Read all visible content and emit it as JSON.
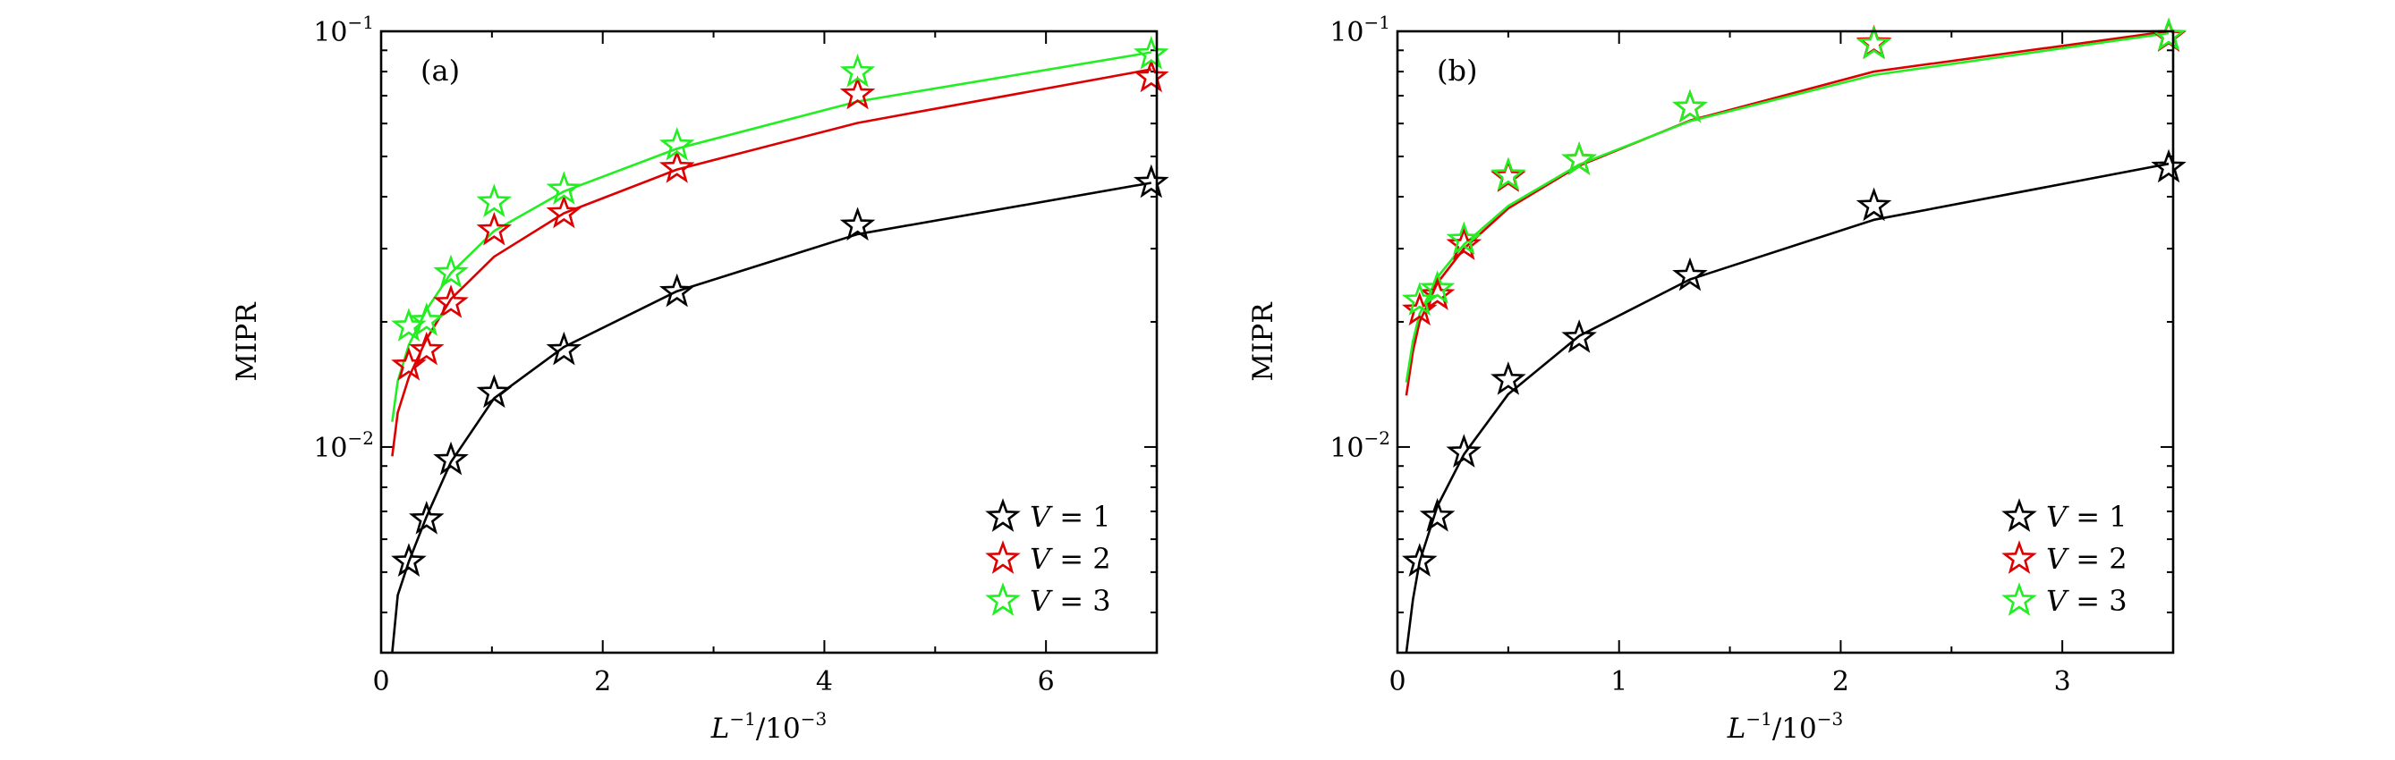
{
  "colors": {
    "V1": "#000000",
    "V2": "#dd0000",
    "V3": "#22ee22"
  },
  "chart_data": [
    {
      "type": "scatter",
      "panel_label": "(a)",
      "xlabel": {
        "base": "L",
        "exp": "−1",
        "suffix": "/10",
        "suffix_exp": "−3"
      },
      "ylabel": "MIPR",
      "xlim": [
        0,
        7
      ],
      "ylim": [
        0.0032,
        0.1
      ],
      "yscale": "log",
      "xticks": [
        0,
        2,
        4,
        6
      ],
      "xtick_labels": [
        "0",
        "2",
        "4",
        "6"
      ],
      "yticks": [
        0.01,
        0.1
      ],
      "ytick_labels": [
        {
          "base": "10",
          "exp": "−2"
        },
        {
          "base": "10",
          "exp": "−1"
        }
      ],
      "legend_position": "bottom-right",
      "series": [
        {
          "name": "V = 1",
          "name_italic": "V",
          "name_rest": " = 1",
          "color": "#000000",
          "x": [
            0.25,
            0.41,
            0.63,
            1.02,
            1.65,
            2.67,
            4.3,
            6.95
          ],
          "y": [
            0.0053,
            0.0067,
            0.0093,
            0.0135,
            0.0171,
            0.0236,
            0.0341,
            0.0432
          ],
          "fit": [
            [
              0.1,
              0.0032
            ],
            [
              0.15,
              0.0044
            ],
            [
              0.25,
              0.0053
            ],
            [
              0.41,
              0.0068
            ],
            [
              0.63,
              0.0092
            ],
            [
              1.02,
              0.0131
            ],
            [
              1.65,
              0.0174
            ],
            [
              2.67,
              0.0237
            ],
            [
              4.3,
              0.0325
            ],
            [
              6.95,
              0.0432
            ]
          ]
        },
        {
          "name": "V = 2",
          "name_italic": "V",
          "name_rest": " = 2",
          "color": "#dd0000",
          "x": [
            0.25,
            0.41,
            0.63,
            1.02,
            1.65,
            2.67,
            4.3,
            6.95
          ],
          "y": [
            0.0157,
            0.0171,
            0.0222,
            0.0332,
            0.0365,
            0.0469,
            0.0705,
            0.0775
          ],
          "fit": [
            [
              0.1,
              0.0095
            ],
            [
              0.15,
              0.0121
            ],
            [
              0.25,
              0.0147
            ],
            [
              0.41,
              0.0182
            ],
            [
              0.63,
              0.0227
            ],
            [
              1.02,
              0.0287
            ],
            [
              1.65,
              0.0365
            ],
            [
              2.67,
              0.0465
            ],
            [
              4.3,
              0.0602
            ],
            [
              6.95,
              0.081
            ]
          ]
        },
        {
          "name": "V = 3",
          "name_italic": "V",
          "name_rest": " = 3",
          "color": "#22ee22",
          "x": [
            0.25,
            0.41,
            0.63,
            1.02,
            1.65,
            2.67,
            4.3,
            6.95
          ],
          "y": [
            0.0195,
            0.0201,
            0.0262,
            0.0388,
            0.0416,
            0.0531,
            0.0797,
            0.088
          ],
          "fit": [
            [
              0.1,
              0.0115
            ],
            [
              0.15,
              0.0144
            ],
            [
              0.25,
              0.0176
            ],
            [
              0.41,
              0.0214
            ],
            [
              0.63,
              0.0262
            ],
            [
              1.02,
              0.0331
            ],
            [
              1.65,
              0.0412
            ],
            [
              2.67,
              0.0522
            ],
            [
              4.3,
              0.0678
            ],
            [
              6.95,
              0.089
            ]
          ]
        }
      ]
    },
    {
      "type": "scatter",
      "panel_label": "(b)",
      "xlabel": {
        "base": "L",
        "exp": "−1",
        "suffix": "/10",
        "suffix_exp": "−3"
      },
      "ylabel": "MIPR",
      "xlim": [
        0,
        3.5
      ],
      "ylim": [
        0.0032,
        0.1
      ],
      "yscale": "log",
      "xticks": [
        0,
        1,
        2,
        3
      ],
      "xtick_labels": [
        "0",
        "1",
        "2",
        "3"
      ],
      "yticks": [
        0.01,
        0.1
      ],
      "ytick_labels": [
        {
          "base": "10",
          "exp": "−2"
        },
        {
          "base": "10",
          "exp": "−1"
        }
      ],
      "legend_position": "bottom-right",
      "series": [
        {
          "name": "V = 1",
          "name_italic": "V",
          "name_rest": " = 1",
          "color": "#000000",
          "x": [
            0.1,
            0.18,
            0.3,
            0.5,
            0.82,
            1.32,
            2.15,
            3.48
          ],
          "y": [
            0.0053,
            0.0068,
            0.0097,
            0.0145,
            0.0183,
            0.0258,
            0.038,
            0.047
          ],
          "fit": [
            [
              0.04,
              0.0032
            ],
            [
              0.07,
              0.0043
            ],
            [
              0.1,
              0.0053
            ],
            [
              0.18,
              0.0072
            ],
            [
              0.3,
              0.0096
            ],
            [
              0.5,
              0.0134
            ],
            [
              0.82,
              0.0185
            ],
            [
              1.32,
              0.0253
            ],
            [
              2.15,
              0.0352
            ],
            [
              3.48,
              0.048
            ]
          ]
        },
        {
          "name": "V = 2",
          "name_italic": "V",
          "name_rest": " = 2",
          "color": "#dd0000",
          "x": [
            0.1,
            0.18,
            0.3,
            0.5,
            0.82,
            1.32,
            2.15,
            3.48
          ],
          "y": [
            0.0213,
            0.0232,
            0.0306,
            0.0446,
            0.049,
            0.0655,
            0.0935,
            0.097
          ],
          "fit": [
            [
              0.04,
              0.0133
            ],
            [
              0.07,
              0.017
            ],
            [
              0.1,
              0.02
            ],
            [
              0.18,
              0.0248
            ],
            [
              0.3,
              0.03
            ],
            [
              0.5,
              0.0375
            ],
            [
              0.82,
              0.0475
            ],
            [
              1.32,
              0.061
            ],
            [
              2.15,
              0.08
            ],
            [
              3.48,
              0.1
            ]
          ]
        },
        {
          "name": "V = 3",
          "name_italic": "V",
          "name_rest": " = 3",
          "color": "#22ee22",
          "x": [
            0.1,
            0.18,
            0.3,
            0.5,
            0.82,
            1.32,
            2.15,
            3.48
          ],
          "y": [
            0.0225,
            0.024,
            0.0315,
            0.045,
            0.049,
            0.0655,
            0.093,
            0.0975
          ],
          "fit": [
            [
              0.04,
              0.0143
            ],
            [
              0.07,
              0.018
            ],
            [
              0.1,
              0.0209
            ],
            [
              0.18,
              0.0256
            ],
            [
              0.3,
              0.0307
            ],
            [
              0.5,
              0.038
            ],
            [
              0.82,
              0.0478
            ],
            [
              1.32,
              0.0608
            ],
            [
              2.15,
              0.0785
            ],
            [
              3.48,
              0.099
            ]
          ]
        }
      ]
    }
  ]
}
